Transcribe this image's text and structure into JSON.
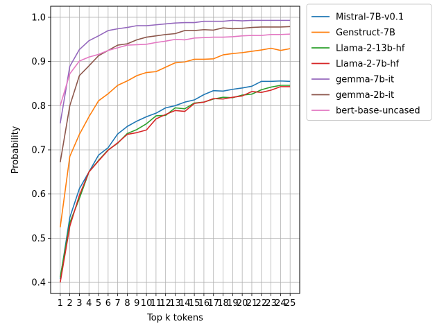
{
  "chart_data": {
    "type": "line",
    "title": "",
    "xlabel": "Top k tokens",
    "ylabel": "Probability",
    "x": [
      1,
      2,
      3,
      4,
      5,
      6,
      7,
      8,
      9,
      10,
      11,
      12,
      13,
      14,
      15,
      16,
      17,
      18,
      19,
      20,
      21,
      22,
      23,
      24,
      25
    ],
    "xticks": [
      "1",
      "2",
      "3",
      "4",
      "5",
      "6",
      "7",
      "8",
      "9",
      "10",
      "11",
      "12",
      "13",
      "14",
      "15",
      "16",
      "17",
      "18",
      "19",
      "20",
      "21",
      "22",
      "23",
      "24",
      "25"
    ],
    "yticks": [
      "0.4",
      "0.5",
      "0.6",
      "0.7",
      "0.8",
      "0.9",
      "1.0"
    ],
    "ylim": [
      0.375,
      1.025
    ],
    "xlim": [
      0,
      26
    ],
    "grid": true,
    "legend_placement": "outside-right",
    "series": [
      {
        "name": "Mistral-7B-v0.1",
        "color": "#1f77b4",
        "values": [
          0.408,
          0.547,
          0.612,
          0.65,
          0.688,
          0.705,
          0.736,
          0.753,
          0.765,
          0.775,
          0.783,
          0.795,
          0.8,
          0.808,
          0.813,
          0.825,
          0.834,
          0.833,
          0.837,
          0.84,
          0.844,
          0.855,
          0.855,
          0.856,
          0.855
        ]
      },
      {
        "name": "Genstruct-7B",
        "color": "#ff7f0e",
        "values": [
          0.525,
          0.685,
          0.735,
          0.775,
          0.811,
          0.827,
          0.846,
          0.856,
          0.868,
          0.875,
          0.877,
          0.887,
          0.897,
          0.899,
          0.905,
          0.905,
          0.906,
          0.915,
          0.918,
          0.92,
          0.923,
          0.926,
          0.93,
          0.925,
          0.929
        ]
      },
      {
        "name": "Llama-2-13b-hf",
        "color": "#2ca02c",
        "values": [
          0.412,
          0.535,
          0.59,
          0.65,
          0.676,
          0.7,
          0.715,
          0.737,
          0.746,
          0.759,
          0.777,
          0.778,
          0.795,
          0.793,
          0.806,
          0.808,
          0.815,
          0.819,
          0.818,
          0.824,
          0.826,
          0.836,
          0.842,
          0.846,
          0.846
        ]
      },
      {
        "name": "Llama-2-7b-hf",
        "color": "#d62728",
        "values": [
          0.4,
          0.527,
          0.597,
          0.65,
          0.675,
          0.699,
          0.716,
          0.735,
          0.739,
          0.745,
          0.77,
          0.78,
          0.789,
          0.787,
          0.805,
          0.808,
          0.816,
          0.815,
          0.819,
          0.822,
          0.832,
          0.83,
          0.835,
          0.843,
          0.843
        ]
      },
      {
        "name": "gemma-7b-it",
        "color": "#9467bd",
        "values": [
          0.76,
          0.889,
          0.927,
          0.947,
          0.958,
          0.97,
          0.974,
          0.977,
          0.981,
          0.981,
          0.983,
          0.985,
          0.987,
          0.988,
          0.988,
          0.991,
          0.991,
          0.991,
          0.993,
          0.992,
          0.993,
          0.993,
          0.993,
          0.993,
          0.993
        ]
      },
      {
        "name": "gemma-2b-it",
        "color": "#8c564b",
        "values": [
          0.672,
          0.8,
          0.868,
          0.89,
          0.913,
          0.925,
          0.937,
          0.94,
          0.949,
          0.955,
          0.958,
          0.961,
          0.963,
          0.97,
          0.97,
          0.972,
          0.971,
          0.976,
          0.974,
          0.975,
          0.977,
          0.978,
          0.978,
          0.978,
          0.979
        ]
      },
      {
        "name": "bert-base-uncased",
        "color": "#e377c2",
        "values": [
          0.8,
          0.872,
          0.901,
          0.91,
          0.916,
          0.925,
          0.931,
          0.937,
          0.938,
          0.939,
          0.943,
          0.946,
          0.95,
          0.949,
          0.953,
          0.954,
          0.955,
          0.955,
          0.956,
          0.958,
          0.959,
          0.959,
          0.961,
          0.961,
          0.962
        ]
      }
    ]
  }
}
